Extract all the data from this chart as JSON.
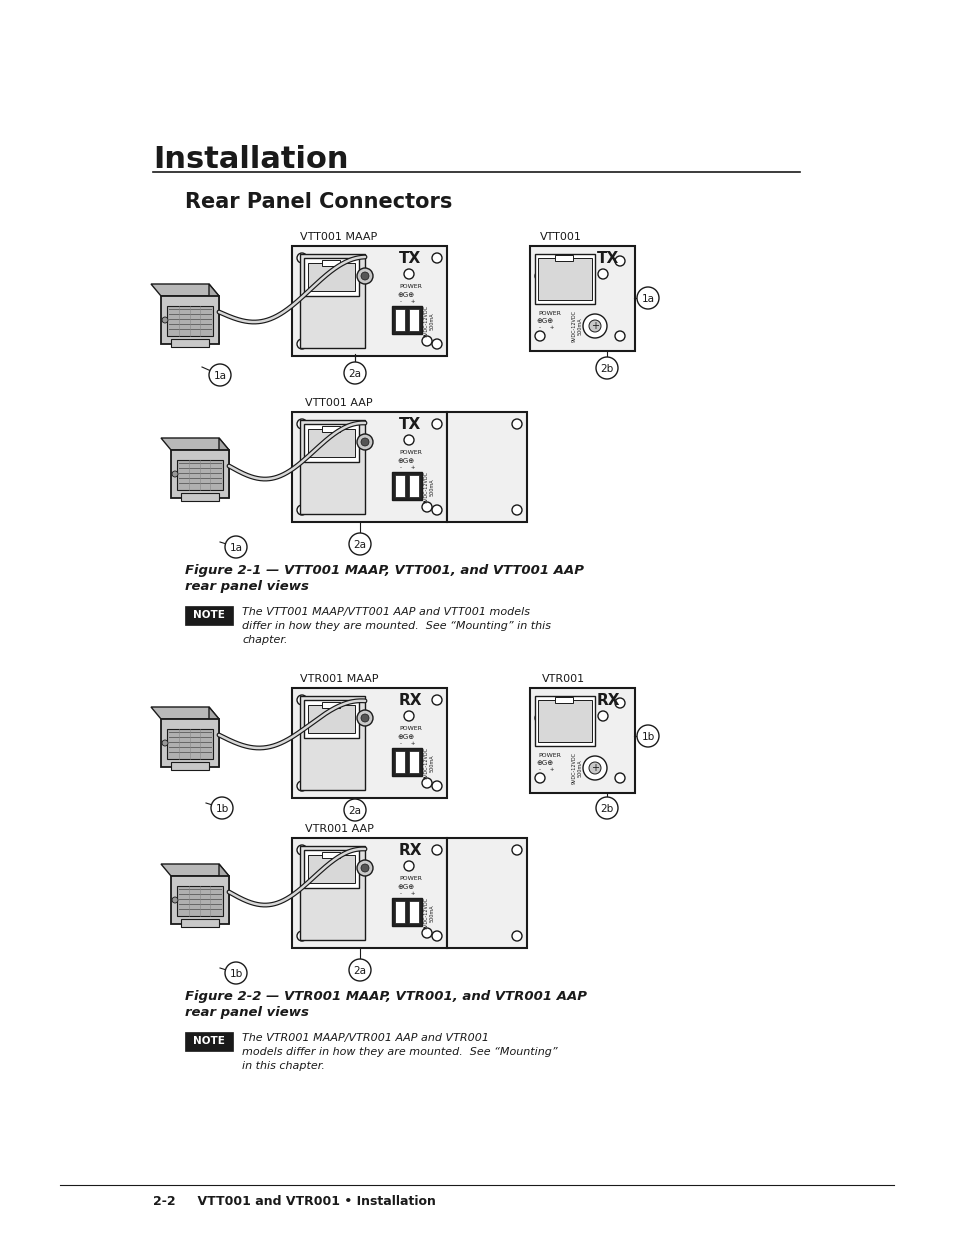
{
  "bg_color": "#ffffff",
  "page_width": 9.54,
  "page_height": 12.35,
  "title": "Installation",
  "subtitle": "Rear Panel Connectors",
  "fig1_caption_line1": "Figure 2-1 — VTT001 MAAP, VTT001, and VTT001 AAP",
  "fig1_caption_line2": "rear panel views",
  "fig2_caption_line1": "Figure 2-2 — VTR001 MAAP, VTR001, and VTR001 AAP",
  "fig2_caption_line2": "rear panel views",
  "note1_text_line1": "The VTT001 MAAP/VTT001 AAP and VTT001 models",
  "note1_text_line2": "differ in how they are mounted.  See “Mounting” in this",
  "note1_text_line3": "chapter.",
  "note2_text_line1": "The VTR001 MAAP/VTR001 AAP and VTR001",
  "note2_text_line2": "models differ in how they are mounted.  See “Mounting”",
  "note2_text_line3": "in this chapter.",
  "footer_text": "2-2     VTT001 and VTR001 • Installation",
  "stroke": "#1a1a1a",
  "white": "#ffffff",
  "lightgray": "#f0f0f0",
  "midgray": "#c8c8c8",
  "darkgray": "#888888"
}
